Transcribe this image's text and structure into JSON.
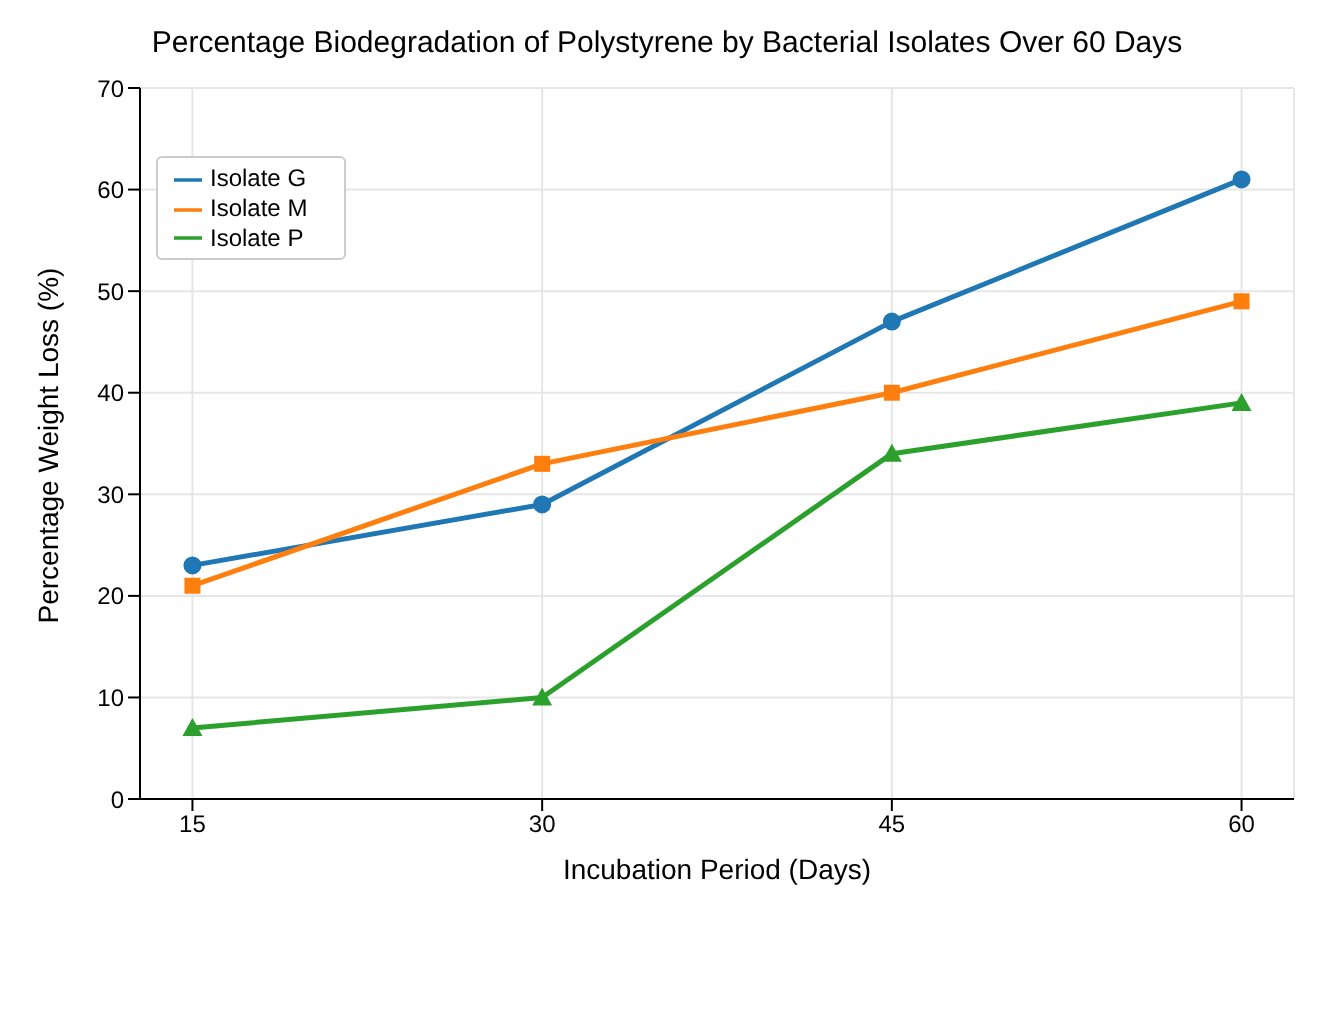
{
  "chart_data": {
    "type": "line",
    "title": "Percentage Biodegradation of Polystyrene by Bacterial Isolates Over 60 Days",
    "xlabel": "Incubation Period (Days)",
    "ylabel": "Percentage Weight Loss (%)",
    "x": [
      15,
      30,
      45,
      60
    ],
    "series": [
      {
        "name": "Isolate G",
        "color": "#1f77b4",
        "values": [
          23,
          29,
          47,
          61
        ],
        "marker": "circle"
      },
      {
        "name": "Isolate M",
        "color": "#ff7f0e",
        "values": [
          21,
          33,
          40,
          49
        ],
        "marker": "square"
      },
      {
        "name": "Isolate P",
        "color": "#2ca02c",
        "values": [
          7,
          10,
          34,
          39
        ],
        "marker": "triangle"
      }
    ],
    "xlim": [
      12.75,
      62.25
    ],
    "xticks": [
      15,
      30,
      45,
      60
    ],
    "ylim": [
      0,
      70
    ],
    "yticks": [
      0,
      10,
      20,
      30,
      40,
      50,
      60,
      70
    ],
    "grid": true,
    "legend": "top left",
    "line_style": "solid"
  }
}
